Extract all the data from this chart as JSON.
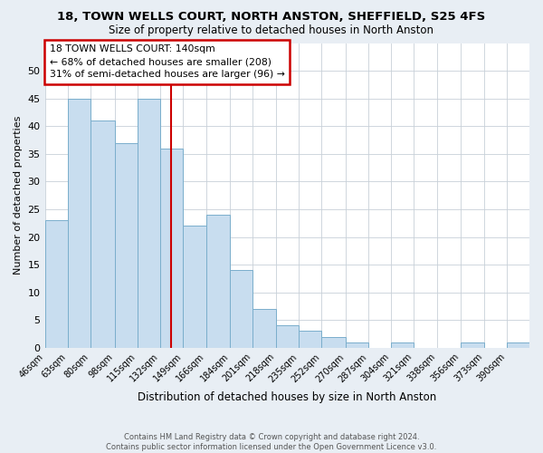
{
  "title": "18, TOWN WELLS COURT, NORTH ANSTON, SHEFFIELD, S25 4FS",
  "subtitle": "Size of property relative to detached houses in North Anston",
  "xlabel": "Distribution of detached houses by size in North Anston",
  "ylabel": "Number of detached properties",
  "bar_color": "#c8ddef",
  "bar_edge_color": "#7aaecc",
  "reference_line_x": 140,
  "reference_line_color": "#cc0000",
  "categories": [
    "46sqm",
    "63sqm",
    "80sqm",
    "98sqm",
    "115sqm",
    "132sqm",
    "149sqm",
    "166sqm",
    "184sqm",
    "201sqm",
    "218sqm",
    "235sqm",
    "252sqm",
    "270sqm",
    "287sqm",
    "304sqm",
    "321sqm",
    "338sqm",
    "356sqm",
    "373sqm",
    "390sqm"
  ],
  "bin_edges": [
    46,
    63,
    80,
    98,
    115,
    132,
    149,
    166,
    184,
    201,
    218,
    235,
    252,
    270,
    287,
    304,
    321,
    338,
    356,
    373,
    390
  ],
  "bin_width": 17,
  "values": [
    23,
    45,
    41,
    37,
    45,
    36,
    22,
    24,
    14,
    7,
    4,
    3,
    2,
    1,
    0,
    1,
    0,
    0,
    1,
    0,
    1
  ],
  "ylim": [
    0,
    55
  ],
  "yticks": [
    0,
    5,
    10,
    15,
    20,
    25,
    30,
    35,
    40,
    45,
    50
  ],
  "annotation_title": "18 TOWN WELLS COURT: 140sqm",
  "annotation_line1": "← 68% of detached houses are smaller (208)",
  "annotation_line2": "31% of semi-detached houses are larger (96) →",
  "annotation_box_color": "white",
  "annotation_box_edge_color": "#cc0000",
  "footer_line1": "Contains HM Land Registry data © Crown copyright and database right 2024.",
  "footer_line2": "Contains public sector information licensed under the Open Government Licence v3.0.",
  "background_color": "#e8eef4",
  "plot_bg_color": "white",
  "grid_color": "#c8d0d8"
}
